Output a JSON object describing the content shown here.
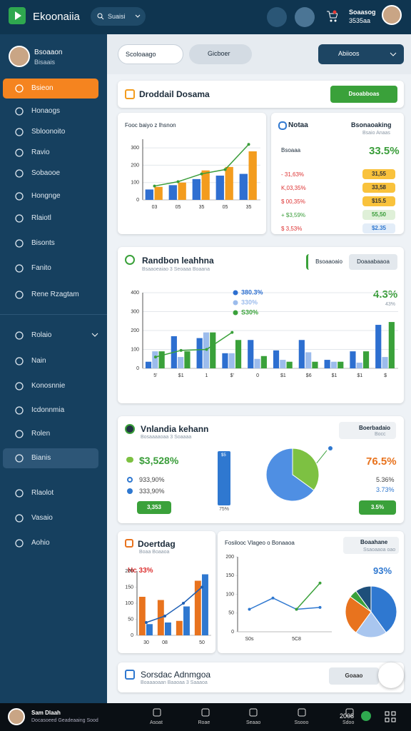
{
  "topbar": {
    "brand": "Ekoonaiia",
    "search": "Suaisi",
    "user_name": "Soaasog",
    "user_id": "3535aa"
  },
  "sidebar": {
    "user_name": "Bsoaaon",
    "user_role": "Bisaais",
    "menu": [
      "Bsieon",
      "Honaogs",
      "Sbloonoito",
      "Ravio",
      "Sobaooe",
      "Hongnge",
      "Rlaiotl",
      "Bisonts",
      "Fanito",
      "Rene Rzagtam"
    ],
    "menu2": [
      "Rolaio",
      "Nain",
      "Konosnnie",
      "Icdonnmia",
      "Rolen",
      "Bianis",
      "Rlaolot",
      "Vasaio",
      "Aohio"
    ]
  },
  "filters": [
    "Scoloaago",
    "Gicboer",
    "Abiioos"
  ],
  "header_card": {
    "title": "Droddail Dosama",
    "button": "Dsoabboas"
  },
  "stats_card": {
    "title": "Notaa",
    "right_title": "Bsonaoaking",
    "right_sub": "Bsaio Anaas",
    "label": "Bsoaaa",
    "big": "33.5%",
    "rows": [
      {
        "text": "- 31,63%",
        "pill": "31,55"
      },
      {
        "text": "K,03,35%",
        "pill": "33,58"
      },
      {
        "text": "$ 00,35%",
        "pill": "$15.5"
      },
      {
        "text": "+ $3,59%",
        "pill": "55,50"
      },
      {
        "text": "$ 3,53%",
        "pill": "$2.35"
      }
    ]
  },
  "trend_card": {
    "title": "Randbon leahhna",
    "subtitle": "Bsaaoeaiao 3 Seoaaa Boaana",
    "tab1": "Bsoaaoaio",
    "tab2": "Doaaabaaoa",
    "big": "4.3%",
    "small": "43%"
  },
  "volume_card": {
    "title": "Vnlandia kehann",
    "subtitle": "Bosaaaaoaa 3 Soaaaa",
    "pill": "Boerbadaio",
    "pill_sub": "Bocc",
    "left_big": "$3,528%",
    "left_1": "933,90%",
    "left_2": "333,90%",
    "left_button": "3,353",
    "bar_top": "$5",
    "bar_label": "75%",
    "right_big": "76.5%",
    "right_1": "5.36%",
    "right_2": "3.73%",
    "right_button": "3.5%"
  },
  "small_card": {
    "title": "Doertdag",
    "subtitle": "Boaa Boaaoa",
    "note": "Hc 33%"
  },
  "line_card": {
    "title": "Fosilooc Vlageo o Bonaaoa",
    "right_title": "Boaahane",
    "right_sub": "Ssaoaaoa oao",
    "big": "93%"
  },
  "footer_card": {
    "title": "Sorsdac Adnmgoa",
    "subtitle": "Boaaaoaan Baaoaa 3 Saaaoa",
    "button": "Goaao"
  },
  "bottom_bar": {
    "user_name": "Sam Dlaah",
    "user_sub": "Docasoeed Geadeaaing Sood",
    "nav": [
      "Asoat",
      "Roae",
      "Seaao",
      "Ssooo",
      "Sdoo"
    ],
    "count": "2008"
  },
  "chart_data": [
    {
      "type": "bar",
      "title": "Fooc baiyo z Ihsnon",
      "categories": [
        "03",
        "05",
        "35",
        "05",
        "35"
      ],
      "ylim": [
        0,
        350
      ],
      "yticks": [
        0,
        100,
        200,
        300
      ],
      "grid": true,
      "series": [
        {
          "color": "#2f6fd1",
          "values": [
            60,
            85,
            120,
            140,
            150
          ]
        },
        {
          "color": "#f39c1e",
          "values": [
            75,
            100,
            170,
            190,
            280
          ]
        },
        {
          "type": "line",
          "color": "#3a9d3a",
          "values": [
            80,
            105,
            150,
            175,
            320
          ]
        }
      ]
    },
    {
      "type": "bar",
      "categories": [
        "5'",
        "$1",
        "1",
        "$'",
        "0",
        "$1",
        "$6",
        "$1",
        "$1",
        "$"
      ],
      "ylim": [
        0,
        400
      ],
      "yticks": [
        0,
        100,
        200,
        300,
        400
      ],
      "grid": true,
      "legend": true,
      "series": [
        {
          "name": "380.3%",
          "color": "#2d6fd0",
          "values": [
            35,
            170,
            160,
            80,
            150,
            95,
            150,
            45,
            90,
            230
          ]
        },
        {
          "name": "330%",
          "color": "#9cbcec",
          "values": [
            90,
            60,
            190,
            80,
            50,
            45,
            85,
            35,
            30,
            60
          ]
        },
        {
          "name": "S30%",
          "color": "#3aa13a",
          "values": [
            90,
            90,
            190,
            150,
            65,
            35,
            35,
            35,
            90,
            245
          ]
        },
        {
          "type": "line",
          "color": "#3aa13a",
          "values": [
            60,
            95,
            100,
            190,
            null,
            null,
            null,
            null,
            null,
            null
          ]
        }
      ]
    },
    {
      "type": "pie",
      "values": [
        35,
        65
      ],
      "colors": [
        "#7dc142",
        "#4f8fe3"
      ]
    },
    {
      "type": "bar",
      "categories": [
        "30",
        "08",
        null,
        "50"
      ],
      "ylim": [
        0,
        200
      ],
      "yticks": [
        0,
        50,
        100,
        150,
        200
      ],
      "grid": false,
      "series": [
        {
          "color": "#e8731e",
          "values": [
            120,
            110,
            45,
            170
          ]
        },
        {
          "color": "#2f78d0",
          "values": [
            35,
            40,
            90,
            190
          ]
        },
        {
          "type": "line",
          "color": "#1e5fb5",
          "values": [
            40,
            60,
            100,
            150
          ]
        }
      ]
    },
    {
      "type": "line",
      "categories": [
        "S0s",
        null,
        "5C8",
        null
      ],
      "ylim": [
        0,
        200
      ],
      "yticks": [
        0,
        50,
        100,
        150,
        200
      ],
      "grid": false,
      "series": [
        {
          "color": "#2f78d0",
          "values": [
            60,
            90,
            60,
            65
          ]
        },
        {
          "color": "#3aa13a",
          "values": [
            null,
            null,
            60,
            130
          ]
        }
      ]
    },
    {
      "type": "pie",
      "values": [
        40,
        20,
        25,
        5,
        10
      ],
      "colors": [
        "#2f78d0",
        "#a9c6ef",
        "#e8731e",
        "#3aa13a",
        "#1e4f7a"
      ]
    }
  ]
}
